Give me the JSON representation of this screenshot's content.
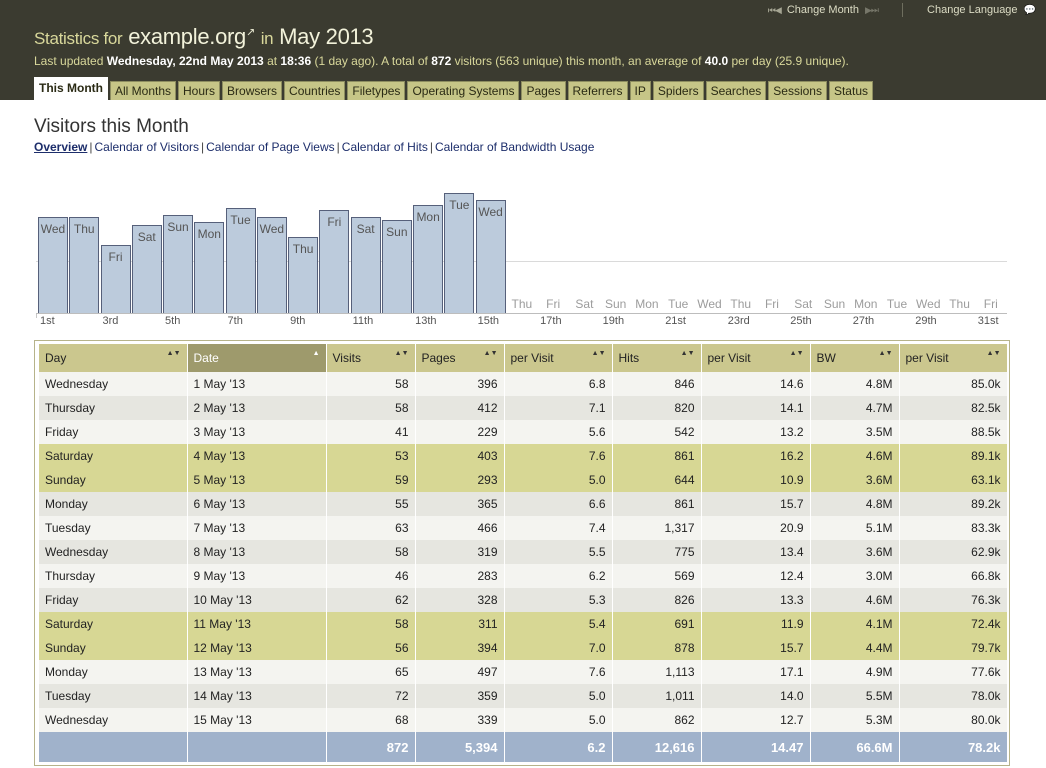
{
  "header": {
    "title_prefix": "Statistics for",
    "site": "example.org",
    "ext_glyph": "↗",
    "title_in": "in",
    "period": "May 2013",
    "updated_prefix": "Last updated",
    "updated_date": "Wednesday, 22nd May 2013",
    "updated_at": "at",
    "updated_time": "18:36",
    "updated_ago": "(1 day ago). A total of",
    "total_visitors": "872",
    "visitors_text": "visitors (563 unique) this month, an average of",
    "avg_per_day": "40.0",
    "per_day_text": "per day (25.9 unique).",
    "change_month": "Change Month",
    "change_language": "Change Language",
    "first_icon": "⏮◀",
    "next_icon": "▶⏭",
    "bubble_icon": "💬"
  },
  "tabs": [
    "This Month",
    "All Months",
    "Hours",
    "Browsers",
    "Countries",
    "Filetypes",
    "Operating Systems",
    "Pages",
    "Referrers",
    "IP",
    "Spiders",
    "Searches",
    "Sessions",
    "Status"
  ],
  "section": {
    "title": "Visitors this Month",
    "links": [
      "Overview",
      "Calendar of Visitors",
      "Calendar of Page Views",
      "Calendar of Hits",
      "Calendar of Bandwidth Usage"
    ]
  },
  "chart_data": {
    "type": "bar",
    "max": 80,
    "days": [
      {
        "day": "Wed",
        "value": 58
      },
      {
        "day": "Thu",
        "value": 58
      },
      {
        "day": "Fri",
        "value": 41
      },
      {
        "day": "Sat",
        "value": 53
      },
      {
        "day": "Sun",
        "value": 59
      },
      {
        "day": "Mon",
        "value": 55
      },
      {
        "day": "Tue",
        "value": 63
      },
      {
        "day": "Wed",
        "value": 58
      },
      {
        "day": "Thu",
        "value": 46
      },
      {
        "day": "Fri",
        "value": 62
      },
      {
        "day": "Sat",
        "value": 58
      },
      {
        "day": "Sun",
        "value": 56
      },
      {
        "day": "Mon",
        "value": 65
      },
      {
        "day": "Tue",
        "value": 72
      },
      {
        "day": "Wed",
        "value": 68
      },
      {
        "day": "Thu",
        "value": null
      },
      {
        "day": "Fri",
        "value": null
      },
      {
        "day": "Sat",
        "value": null
      },
      {
        "day": "Sun",
        "value": null
      },
      {
        "day": "Mon",
        "value": null
      },
      {
        "day": "Tue",
        "value": null
      },
      {
        "day": "Wed",
        "value": null
      },
      {
        "day": "Thu",
        "value": null
      },
      {
        "day": "Fri",
        "value": null
      },
      {
        "day": "Sat",
        "value": null
      },
      {
        "day": "Sun",
        "value": null
      },
      {
        "day": "Mon",
        "value": null
      },
      {
        "day": "Tue",
        "value": null
      },
      {
        "day": "Wed",
        "value": null
      },
      {
        "day": "Thu",
        "value": null
      },
      {
        "day": "Fri",
        "value": null
      }
    ],
    "date_labels": [
      {
        "day": 1,
        "label": "1st"
      },
      {
        "day": 3,
        "label": "3rd"
      },
      {
        "day": 5,
        "label": "5th"
      },
      {
        "day": 7,
        "label": "7th"
      },
      {
        "day": 9,
        "label": "9th"
      },
      {
        "day": 11,
        "label": "11th"
      },
      {
        "day": 13,
        "label": "13th"
      },
      {
        "day": 15,
        "label": "15th"
      },
      {
        "day": 17,
        "label": "17th"
      },
      {
        "day": 19,
        "label": "19th"
      },
      {
        "day": 21,
        "label": "21st"
      },
      {
        "day": 23,
        "label": "23rd"
      },
      {
        "day": 25,
        "label": "25th"
      },
      {
        "day": 27,
        "label": "27th"
      },
      {
        "day": 29,
        "label": "29th"
      },
      {
        "day": 31,
        "label": "31st"
      }
    ]
  },
  "table": {
    "columns": [
      "Day",
      "Date",
      "Visits",
      "Pages",
      "per Visit",
      "Hits",
      "per Visit",
      "BW",
      "per Visit"
    ],
    "sort_icon": "▲▼",
    "sorted_icon": "▲",
    "rows": [
      [
        "Wednesday",
        "1 May '13",
        "58",
        "396",
        "6.8",
        "846",
        "14.6",
        "4.8M",
        "85.0k"
      ],
      [
        "Thursday",
        "2 May '13",
        "58",
        "412",
        "7.1",
        "820",
        "14.1",
        "4.7M",
        "82.5k"
      ],
      [
        "Friday",
        "3 May '13",
        "41",
        "229",
        "5.6",
        "542",
        "13.2",
        "3.5M",
        "88.5k"
      ],
      [
        "Saturday",
        "4 May '13",
        "53",
        "403",
        "7.6",
        "861",
        "16.2",
        "4.6M",
        "89.1k"
      ],
      [
        "Sunday",
        "5 May '13",
        "59",
        "293",
        "5.0",
        "644",
        "10.9",
        "3.6M",
        "63.1k"
      ],
      [
        "Monday",
        "6 May '13",
        "55",
        "365",
        "6.6",
        "861",
        "15.7",
        "4.8M",
        "89.2k"
      ],
      [
        "Tuesday",
        "7 May '13",
        "63",
        "466",
        "7.4",
        "1,317",
        "20.9",
        "5.1M",
        "83.3k"
      ],
      [
        "Wednesday",
        "8 May '13",
        "58",
        "319",
        "5.5",
        "775",
        "13.4",
        "3.6M",
        "62.9k"
      ],
      [
        "Thursday",
        "9 May '13",
        "46",
        "283",
        "6.2",
        "569",
        "12.4",
        "3.0M",
        "66.8k"
      ],
      [
        "Friday",
        "10 May '13",
        "62",
        "328",
        "5.3",
        "826",
        "13.3",
        "4.6M",
        "76.3k"
      ],
      [
        "Saturday",
        "11 May '13",
        "58",
        "311",
        "5.4",
        "691",
        "11.9",
        "4.1M",
        "72.4k"
      ],
      [
        "Sunday",
        "12 May '13",
        "56",
        "394",
        "7.0",
        "878",
        "15.7",
        "4.4M",
        "79.7k"
      ],
      [
        "Monday",
        "13 May '13",
        "65",
        "497",
        "7.6",
        "1,113",
        "17.1",
        "4.9M",
        "77.6k"
      ],
      [
        "Tuesday",
        "14 May '13",
        "72",
        "359",
        "5.0",
        "1,011",
        "14.0",
        "5.5M",
        "78.0k"
      ],
      [
        "Wednesday",
        "15 May '13",
        "68",
        "339",
        "5.0",
        "862",
        "12.7",
        "5.3M",
        "80.0k"
      ]
    ],
    "totals": [
      "",
      "",
      "872",
      "5,394",
      "6.2",
      "12,616",
      "14.47",
      "66.6M",
      "78.2k"
    ]
  }
}
